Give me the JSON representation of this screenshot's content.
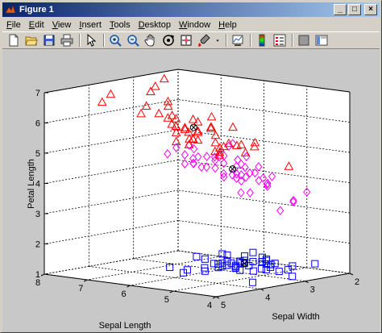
{
  "window": {
    "title": "Figure 1"
  },
  "caption_buttons": {
    "minimize": "_",
    "maximize": "□",
    "close": "×"
  },
  "menu": [
    {
      "label": "File",
      "u": "F",
      "rest": "ile"
    },
    {
      "label": "Edit",
      "u": "E",
      "rest": "dit"
    },
    {
      "label": "View",
      "u": "V",
      "rest": "iew"
    },
    {
      "label": "Insert",
      "u": "I",
      "rest": "nsert"
    },
    {
      "label": "Tools",
      "u": "T",
      "rest": "ools"
    },
    {
      "label": "Desktop",
      "u": "D",
      "rest": "esktop"
    },
    {
      "label": "Window",
      "u": "W",
      "rest": "indow"
    },
    {
      "label": "Help",
      "u": "H",
      "rest": "elp"
    }
  ],
  "toolbar": [
    "new-file-icon",
    "open-folder-icon",
    "save-icon",
    "print-icon",
    "|",
    "pointer-icon",
    "|",
    "zoom-in-icon",
    "zoom-out-icon",
    "pan-hand-icon",
    "rotate-3d-icon",
    "data-cursor-icon",
    "brush-icon",
    "dropdown-arrow-icon",
    "|",
    "link-plot-icon",
    "|",
    "colorbar-icon",
    "legend-icon",
    "|",
    "hide-plot-tools-icon",
    "show-plot-tools-icon"
  ],
  "chart_data": {
    "type": "scatter",
    "dimensions": "3d",
    "xlabel": "Sepal Length",
    "ylabel": "Sepal Width",
    "zlabel": "Petal Length",
    "xlim": [
      4,
      8
    ],
    "ylim": [
      2,
      5
    ],
    "zlim": [
      1,
      7
    ],
    "x_ticks": [
      "4",
      "5",
      "6",
      "7",
      "8"
    ],
    "y_ticks": [
      "2",
      "3",
      "4",
      "5"
    ],
    "z_ticks": [
      "1",
      "2",
      "3",
      "4",
      "5",
      "6",
      "7"
    ],
    "grid": true,
    "colors": {
      "setosa": "#0000ff",
      "versicolor": "#ff00ff",
      "virginica": "#ff0000",
      "centroid": "#000000"
    },
    "series": [
      {
        "marker": "square",
        "color": "#0000ff",
        "points": [
          [
            5.1,
            3.5,
            1.4
          ],
          [
            4.9,
            3.0,
            1.4
          ],
          [
            4.7,
            3.2,
            1.3
          ],
          [
            4.6,
            3.1,
            1.5
          ],
          [
            5.0,
            3.6,
            1.4
          ],
          [
            5.4,
            3.9,
            1.7
          ],
          [
            4.6,
            3.4,
            1.4
          ],
          [
            5.0,
            3.4,
            1.5
          ],
          [
            4.4,
            2.9,
            1.4
          ],
          [
            4.9,
            3.1,
            1.5
          ],
          [
            5.4,
            3.7,
            1.5
          ],
          [
            4.8,
            3.4,
            1.6
          ],
          [
            4.8,
            3.0,
            1.4
          ],
          [
            4.3,
            3.0,
            1.1
          ],
          [
            5.8,
            4.0,
            1.2
          ],
          [
            5.7,
            4.4,
            1.5
          ],
          [
            5.4,
            3.9,
            1.3
          ],
          [
            5.1,
            3.5,
            1.4
          ],
          [
            5.7,
            3.8,
            1.7
          ],
          [
            5.1,
            3.8,
            1.5
          ],
          [
            5.4,
            3.4,
            1.7
          ],
          [
            5.1,
            3.7,
            1.5
          ],
          [
            4.6,
            3.6,
            1.0
          ],
          [
            5.1,
            3.3,
            1.7
          ],
          [
            4.8,
            3.4,
            1.9
          ],
          [
            5.0,
            3.0,
            1.6
          ],
          [
            5.0,
            3.4,
            1.6
          ],
          [
            5.2,
            3.5,
            1.5
          ],
          [
            5.2,
            3.4,
            1.4
          ],
          [
            4.7,
            3.2,
            1.6
          ],
          [
            4.8,
            3.1,
            1.6
          ],
          [
            5.4,
            3.4,
            1.5
          ],
          [
            5.2,
            4.1,
            1.5
          ],
          [
            5.5,
            4.2,
            1.4
          ],
          [
            4.9,
            3.1,
            1.5
          ],
          [
            5.0,
            3.2,
            1.2
          ],
          [
            5.5,
            3.5,
            1.3
          ],
          [
            4.4,
            3.0,
            1.3
          ],
          [
            5.1,
            3.4,
            1.5
          ],
          [
            5.0,
            3.5,
            1.3
          ],
          [
            4.5,
            2.3,
            1.3
          ],
          [
            4.4,
            3.2,
            1.3
          ],
          [
            5.0,
            3.5,
            1.6
          ],
          [
            5.1,
            3.8,
            1.9
          ],
          [
            4.8,
            3.0,
            1.4
          ],
          [
            5.1,
            3.8,
            1.6
          ],
          [
            4.6,
            3.2,
            1.4
          ],
          [
            5.3,
            3.7,
            1.5
          ],
          [
            5.0,
            3.3,
            1.4
          ]
        ]
      },
      {
        "marker": "diamond",
        "color": "#ff00ff",
        "points": [
          [
            7.0,
            3.2,
            4.7
          ],
          [
            6.4,
            3.2,
            4.5
          ],
          [
            6.9,
            3.1,
            4.9
          ],
          [
            5.5,
            2.3,
            4.0
          ],
          [
            6.5,
            2.8,
            4.6
          ],
          [
            5.7,
            2.8,
            4.5
          ],
          [
            6.3,
            3.3,
            4.7
          ],
          [
            4.9,
            2.4,
            3.3
          ],
          [
            6.6,
            2.9,
            4.6
          ],
          [
            5.2,
            2.7,
            3.9
          ],
          [
            5.0,
            2.0,
            3.5
          ],
          [
            5.9,
            3.0,
            4.2
          ],
          [
            6.0,
            2.2,
            4.0
          ],
          [
            6.1,
            2.9,
            4.7
          ],
          [
            5.6,
            2.9,
            3.6
          ],
          [
            6.7,
            3.1,
            4.4
          ],
          [
            5.6,
            3.0,
            4.5
          ],
          [
            5.8,
            2.7,
            4.1
          ],
          [
            6.2,
            2.2,
            4.5
          ],
          [
            5.6,
            2.5,
            3.9
          ],
          [
            5.9,
            3.2,
            4.8
          ],
          [
            6.1,
            2.8,
            4.0
          ],
          [
            6.3,
            2.5,
            4.9
          ],
          [
            6.1,
            2.8,
            4.7
          ],
          [
            6.4,
            2.9,
            4.3
          ],
          [
            6.6,
            3.0,
            4.4
          ],
          [
            6.8,
            2.8,
            4.8
          ],
          [
            6.7,
            3.0,
            5.0
          ],
          [
            6.0,
            2.9,
            4.5
          ],
          [
            5.7,
            2.6,
            3.5
          ],
          [
            5.5,
            2.4,
            3.8
          ],
          [
            5.5,
            2.4,
            3.7
          ],
          [
            5.8,
            2.7,
            3.9
          ],
          [
            6.0,
            2.7,
            5.1
          ],
          [
            5.4,
            3.0,
            4.5
          ],
          [
            6.0,
            3.4,
            4.5
          ],
          [
            6.7,
            3.1,
            4.7
          ],
          [
            6.3,
            2.3,
            4.4
          ],
          [
            5.6,
            3.0,
            4.1
          ],
          [
            5.5,
            2.5,
            4.0
          ],
          [
            5.5,
            2.6,
            4.4
          ],
          [
            6.1,
            3.0,
            4.6
          ],
          [
            5.8,
            2.6,
            4.0
          ],
          [
            5.0,
            2.3,
            3.3
          ],
          [
            5.6,
            2.7,
            4.2
          ],
          [
            5.7,
            3.0,
            4.2
          ],
          [
            5.7,
            2.9,
            4.2
          ],
          [
            6.2,
            2.9,
            4.3
          ],
          [
            5.1,
            2.5,
            3.0
          ]
        ]
      },
      {
        "marker": "triangle",
        "color": "#ff0000",
        "points": [
          [
            6.3,
            3.3,
            6.0
          ],
          [
            5.8,
            2.7,
            5.1
          ],
          [
            7.1,
            3.0,
            5.9
          ],
          [
            6.3,
            2.9,
            5.6
          ],
          [
            6.5,
            3.0,
            5.8
          ],
          [
            7.6,
            3.0,
            6.6
          ],
          [
            4.9,
            2.5,
            4.5
          ],
          [
            7.3,
            2.9,
            6.3
          ],
          [
            6.7,
            2.5,
            5.8
          ],
          [
            7.2,
            3.6,
            6.1
          ],
          [
            6.5,
            3.2,
            5.1
          ],
          [
            6.4,
            2.7,
            5.3
          ],
          [
            6.8,
            3.0,
            5.5
          ],
          [
            5.7,
            2.5,
            5.0
          ],
          [
            5.8,
            2.8,
            5.1
          ],
          [
            6.4,
            3.2,
            5.3
          ],
          [
            6.5,
            3.0,
            5.5
          ],
          [
            7.7,
            3.8,
            6.7
          ],
          [
            7.7,
            2.6,
            6.9
          ],
          [
            6.0,
            2.2,
            5.0
          ],
          [
            6.9,
            3.2,
            5.7
          ],
          [
            5.6,
            2.8,
            4.9
          ],
          [
            7.7,
            2.8,
            6.7
          ],
          [
            6.3,
            2.7,
            4.9
          ],
          [
            6.7,
            3.3,
            5.7
          ],
          [
            7.2,
            3.2,
            6.0
          ],
          [
            6.2,
            2.8,
            4.8
          ],
          [
            6.1,
            3.0,
            4.9
          ],
          [
            6.4,
            2.8,
            5.6
          ],
          [
            7.2,
            3.0,
            5.8
          ],
          [
            7.4,
            2.8,
            6.1
          ],
          [
            7.9,
            3.8,
            6.4
          ],
          [
            6.4,
            2.8,
            5.6
          ],
          [
            6.3,
            2.8,
            5.1
          ],
          [
            6.1,
            2.6,
            5.6
          ],
          [
            7.7,
            3.0,
            6.1
          ],
          [
            6.3,
            3.4,
            5.6
          ],
          [
            6.4,
            3.1,
            5.5
          ],
          [
            6.0,
            3.0,
            4.8
          ],
          [
            6.9,
            3.1,
            5.4
          ],
          [
            6.7,
            3.1,
            5.6
          ],
          [
            6.9,
            3.1,
            5.1
          ],
          [
            6.8,
            3.2,
            5.9
          ],
          [
            6.7,
            3.3,
            5.7
          ],
          [
            6.7,
            3.0,
            5.2
          ],
          [
            6.3,
            2.5,
            5.0
          ],
          [
            6.5,
            3.0,
            5.2
          ],
          [
            6.2,
            3.4,
            5.4
          ],
          [
            5.9,
            3.0,
            5.1
          ]
        ]
      },
      {
        "marker": "circle-x",
        "color": "#000000",
        "points": [
          [
            5.0,
            3.4,
            1.5
          ],
          [
            5.9,
            2.8,
            4.3
          ],
          [
            6.6,
            3.0,
            5.6
          ]
        ]
      }
    ]
  }
}
